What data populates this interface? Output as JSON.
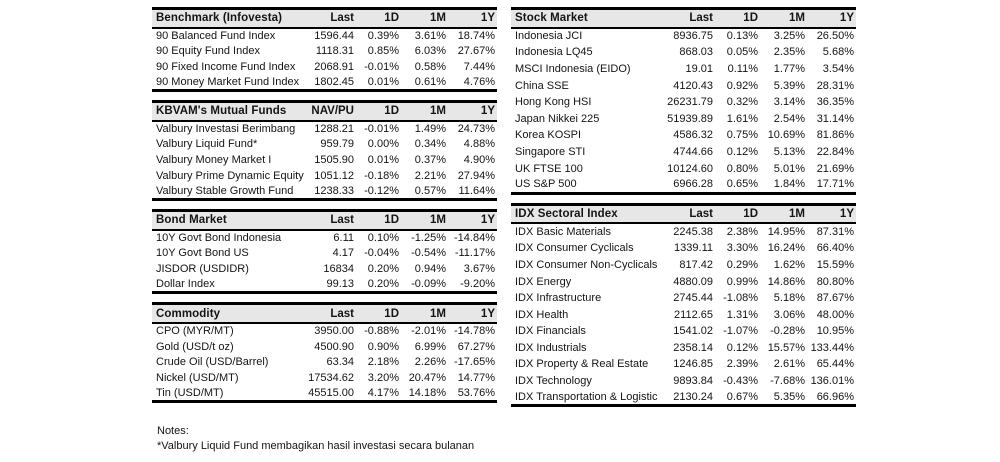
{
  "colors": {
    "page_bg": "#ffffff",
    "header_bg": "#e7e7e7",
    "border": "#000000",
    "text": "#141414"
  },
  "tables": {
    "benchmark": {
      "title": "Benchmark (Infovesta)",
      "columns": [
        "Last",
        "1D",
        "1M",
        "1Y"
      ],
      "rows": [
        {
          "name": "90 Balanced Fund Index",
          "values": [
            "1596.44",
            "0.39%",
            "3.61%",
            "18.74%"
          ]
        },
        {
          "name": "90 Equity Fund Index",
          "values": [
            "1118.31",
            "0.85%",
            "6.03%",
            "27.67%"
          ]
        },
        {
          "name": "90 Fixed Income Fund Index",
          "values": [
            "2068.91",
            "-0.01%",
            "0.58%",
            "7.44%"
          ]
        },
        {
          "name": "90 Money Market Fund Index",
          "values": [
            "1802.45",
            "0.01%",
            "0.61%",
            "4.76%"
          ]
        }
      ]
    },
    "mutual_funds": {
      "title": "KBVAM's Mutual Funds",
      "columns": [
        "NAV/PU",
        "1D",
        "1M",
        "1Y"
      ],
      "rows": [
        {
          "name": "Valbury Investasi Berimbang",
          "values": [
            "1288.21",
            "-0.01%",
            "1.49%",
            "24.73%"
          ]
        },
        {
          "name": "Valbury Liquid Fund*",
          "values": [
            "959.79",
            "0.00%",
            "0.34%",
            "4.88%"
          ]
        },
        {
          "name": "Valbury Money Market I",
          "values": [
            "1505.90",
            "0.01%",
            "0.37%",
            "4.90%"
          ]
        },
        {
          "name": "Valbury Prime Dynamic Equity",
          "values": [
            "1051.12",
            "-0.18%",
            "2.21%",
            "27.94%"
          ]
        },
        {
          "name": "Valbury Stable Growth Fund",
          "values": [
            "1238.33",
            "-0.12%",
            "0.57%",
            "11.64%"
          ]
        }
      ]
    },
    "bond_market": {
      "title": "Bond Market",
      "columns": [
        "Last",
        "1D",
        "1M",
        "1Y"
      ],
      "rows": [
        {
          "name": "10Y Govt Bond Indonesia",
          "values": [
            "6.11",
            "0.10%",
            "-1.25%",
            "-14.84%"
          ]
        },
        {
          "name": "10Y Govt Bond US",
          "values": [
            "4.17",
            "-0.04%",
            "-0.54%",
            "-11.17%"
          ]
        },
        {
          "name": "JISDOR (USDIDR)",
          "values": [
            "16834",
            "0.20%",
            "0.94%",
            "3.67%"
          ]
        },
        {
          "name": "Dollar Index",
          "values": [
            "99.13",
            "0.20%",
            "-0.09%",
            "-9.20%"
          ]
        }
      ]
    },
    "commodity": {
      "title": "Commodity",
      "columns": [
        "Last",
        "1D",
        "1M",
        "1Y"
      ],
      "rows": [
        {
          "name": "CPO (MYR/MT)",
          "values": [
            "3950.00",
            "-0.88%",
            "-2.01%",
            "-14.78%"
          ]
        },
        {
          "name": "Gold (USD/t oz)",
          "values": [
            "4500.90",
            "0.90%",
            "6.99%",
            "67.27%"
          ]
        },
        {
          "name": "Crude Oil (USD/Barrel)",
          "values": [
            "63.34",
            "2.18%",
            "2.26%",
            "-17.65%"
          ]
        },
        {
          "name": "Nickel (USD/MT)",
          "values": [
            "17534.62",
            "3.20%",
            "20.47%",
            "14.77%"
          ]
        },
        {
          "name": "Tin (USD/MT)",
          "values": [
            "45515.00",
            "4.17%",
            "14.18%",
            "53.76%"
          ]
        }
      ]
    },
    "stock_market": {
      "title": "Stock Market",
      "columns": [
        "Last",
        "1D",
        "1M",
        "1Y"
      ],
      "rows": [
        {
          "name": "Indonesia JCI",
          "values": [
            "8936.75",
            "0.13%",
            "3.25%",
            "26.50%"
          ]
        },
        {
          "name": "Indonesia LQ45",
          "values": [
            "868.03",
            "0.05%",
            "2.35%",
            "5.68%"
          ]
        },
        {
          "name": "MSCI Indonesia (EIDO)",
          "values": [
            "19.01",
            "0.11%",
            "1.77%",
            "3.54%"
          ]
        },
        {
          "name": "China SSE",
          "values": [
            "4120.43",
            "0.92%",
            "5.39%",
            "28.31%"
          ]
        },
        {
          "name": "Hong Kong HSI",
          "values": [
            "26231.79",
            "0.32%",
            "3.14%",
            "36.35%"
          ]
        },
        {
          "name": "Japan Nikkei 225",
          "values": [
            "51939.89",
            "1.61%",
            "2.54%",
            "31.14%"
          ]
        },
        {
          "name": "Korea KOSPI",
          "values": [
            "4586.32",
            "0.75%",
            "10.69%",
            "81.86%"
          ]
        },
        {
          "name": "Singapore STI",
          "values": [
            "4744.66",
            "0.12%",
            "5.13%",
            "22.84%"
          ]
        },
        {
          "name": "UK FTSE 100",
          "values": [
            "10124.60",
            "0.80%",
            "5.01%",
            "21.69%"
          ]
        },
        {
          "name": "US S&P 500",
          "values": [
            "6966.28",
            "0.65%",
            "1.84%",
            "17.71%"
          ]
        }
      ]
    },
    "idx_sectoral": {
      "title": "IDX Sectoral Index",
      "columns": [
        "Last",
        "1D",
        "1M",
        "1Y"
      ],
      "rows": [
        {
          "name": "IDX Basic Materials",
          "values": [
            "2245.38",
            "2.38%",
            "14.95%",
            "87.31%"
          ]
        },
        {
          "name": "IDX Consumer Cyclicals",
          "values": [
            "1339.11",
            "3.30%",
            "16.24%",
            "66.40%"
          ]
        },
        {
          "name": "IDX Consumer Non-Cyclicals",
          "values": [
            "817.42",
            "0.29%",
            "1.62%",
            "15.59%"
          ]
        },
        {
          "name": "IDX Energy",
          "values": [
            "4880.09",
            "0.99%",
            "14.86%",
            "80.80%"
          ]
        },
        {
          "name": "IDX Infrastructure",
          "values": [
            "2745.44",
            "-1.08%",
            "5.18%",
            "87.67%"
          ]
        },
        {
          "name": "IDX Health",
          "values": [
            "2112.65",
            "1.31%",
            "3.06%",
            "48.00%"
          ]
        },
        {
          "name": "IDX Financials",
          "values": [
            "1541.02",
            "-1.07%",
            "-0.28%",
            "10.95%"
          ]
        },
        {
          "name": "IDX Industrials",
          "values": [
            "2358.14",
            "0.12%",
            "15.57%",
            "133.44%"
          ]
        },
        {
          "name": "IDX Property & Real Estate",
          "values": [
            "1246.85",
            "2.39%",
            "2.61%",
            "65.44%"
          ]
        },
        {
          "name": "IDX Technology",
          "values": [
            "9893.84",
            "-0.43%",
            "-7.68%",
            "136.01%"
          ]
        },
        {
          "name": "IDX Transportation & Logistic",
          "values": [
            "2130.24",
            "0.67%",
            "5.35%",
            "66.96%"
          ]
        }
      ]
    }
  },
  "notes": {
    "title": "Notes:",
    "line": "*Valbury Liquid Fund membagikan  hasil investasi secara bulanan"
  }
}
